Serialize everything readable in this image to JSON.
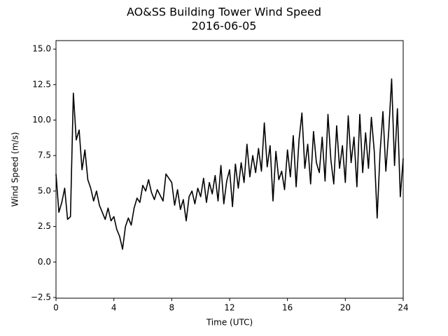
{
  "chart_data": {
    "type": "line",
    "title": "AO&SS Building Tower Wind Speed",
    "subtitle": "2016-06-05",
    "x_label": "Time (UTC)",
    "y_label": "Wind Speed (m/s)",
    "xlim": [
      0,
      24
    ],
    "xticks": [
      0,
      4,
      8,
      12,
      16,
      20,
      24
    ],
    "ylim": [
      -2.55,
      15.6
    ],
    "yticks": [
      {
        "value": -2.5,
        "label": "−2.5"
      },
      {
        "value": 0,
        "label": "0.0"
      },
      2.5,
      {
        "value": 5,
        "label": "5.0"
      },
      7.5,
      {
        "value": 10,
        "label": "10.0"
      },
      12.5,
      {
        "value": 15,
        "label": "15.0"
      }
    ],
    "grid": false,
    "series": [
      {
        "color": "#000000",
        "x": [
          0,
          0.2,
          0.4,
          0.6,
          0.8,
          1,
          1.2,
          1.4,
          1.6,
          1.8,
          2,
          2.2,
          2.4,
          2.6,
          2.8,
          3,
          3.2,
          3.4,
          3.6,
          3.8,
          4,
          4.2,
          4.4,
          4.6,
          4.8,
          5,
          5.2,
          5.4,
          5.6,
          5.8,
          6,
          6.2,
          6.4,
          6.6,
          6.8,
          7,
          7.2,
          7.4,
          7.6,
          7.8,
          8,
          8.2,
          8.4,
          8.6,
          8.8,
          9,
          9.2,
          9.4,
          9.6,
          9.8,
          10,
          10.2,
          10.4,
          10.6,
          10.8,
          11,
          11.2,
          11.4,
          11.6,
          11.8,
          12,
          12.2,
          12.4,
          12.6,
          12.8,
          13,
          13.2,
          13.4,
          13.6,
          13.8,
          14,
          14.2,
          14.4,
          14.6,
          14.8,
          15,
          15.2,
          15.4,
          15.6,
          15.8,
          16,
          16.2,
          16.4,
          16.6,
          16.8,
          17,
          17.2,
          17.4,
          17.6,
          17.8,
          18,
          18.2,
          18.4,
          18.6,
          18.8,
          19,
          19.2,
          19.4,
          19.6,
          19.8,
          20,
          20.2,
          20.4,
          20.6,
          20.8,
          21,
          21.2,
          21.4,
          21.6,
          21.8,
          22,
          22.2,
          22.4,
          22.6,
          22.8,
          23,
          23.2,
          23.4,
          23.6,
          23.8,
          24
        ],
        "values": [
          6.2,
          3.5,
          4.2,
          5.2,
          3.0,
          3.2,
          11.9,
          8.6,
          9.3,
          6.5,
          7.9,
          5.8,
          5.2,
          4.3,
          5.0,
          4.0,
          3.5,
          3.0,
          3.8,
          2.9,
          3.2,
          2.3,
          1.8,
          0.9,
          2.5,
          3.1,
          2.6,
          3.8,
          4.5,
          4.2,
          5.4,
          5.0,
          5.8,
          4.9,
          4.4,
          5.1,
          4.7,
          4.3,
          6.2,
          5.9,
          5.6,
          4.0,
          5.1,
          3.7,
          4.4,
          2.9,
          4.6,
          5.0,
          4.1,
          5.2,
          4.6,
          5.9,
          4.2,
          5.6,
          4.8,
          6.1,
          4.3,
          6.8,
          4.1,
          5.7,
          6.5,
          3.9,
          6.9,
          5.2,
          7.0,
          5.6,
          8.3,
          6.0,
          7.5,
          6.3,
          8.0,
          6.4,
          9.8,
          6.7,
          8.2,
          4.3,
          7.8,
          5.8,
          6.4,
          5.1,
          7.9,
          6.0,
          8.9,
          5.3,
          8.6,
          10.5,
          6.6,
          8.3,
          5.5,
          9.2,
          7.0,
          6.3,
          8.8,
          5.7,
          10.4,
          7.2,
          5.5,
          9.6,
          6.6,
          8.2,
          5.6,
          10.3,
          7.0,
          8.8,
          5.3,
          10.4,
          6.3,
          9.1,
          6.6,
          10.2,
          7.8,
          3.1,
          7.7,
          10.6,
          6.4,
          9.2,
          12.9,
          6.8,
          10.8,
          4.6,
          7.3
        ]
      }
    ]
  }
}
